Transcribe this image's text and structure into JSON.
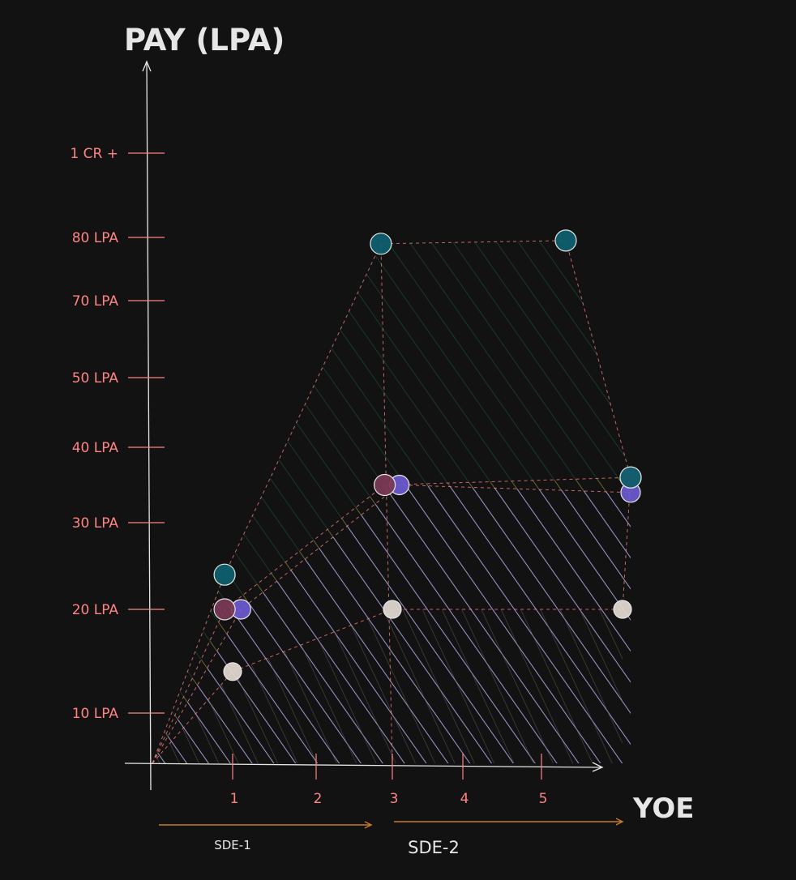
{
  "chart_data": {
    "type": "area",
    "title": "",
    "ylabel": "PAY (LPA)",
    "xlabel": "YOE",
    "y_ticks": [
      {
        "value": 10,
        "label": "10 LPA"
      },
      {
        "value": 20,
        "label": "20 LPA"
      },
      {
        "value": 30,
        "label": "30 LPA"
      },
      {
        "value": 40,
        "label": "40 LPA"
      },
      {
        "value": 50,
        "label": "50 LPA"
      },
      {
        "value": 70,
        "label": "70 LPA"
      },
      {
        "value": 80,
        "label": "80 LPA"
      },
      {
        "value": 100,
        "label": "1 CR +"
      }
    ],
    "x_ticks": [
      {
        "value": 1,
        "label": "1"
      },
      {
        "value": 2,
        "label": "2"
      },
      {
        "value": 3,
        "label": "3"
      },
      {
        "value": 4,
        "label": "4"
      },
      {
        "value": 5,
        "label": "5"
      }
    ],
    "bands": [
      {
        "label": "SDE-1",
        "from": 0,
        "to": 3
      },
      {
        "label": "SDE-2",
        "from": 3,
        "to": 6
      }
    ],
    "series": [
      {
        "color": "#e0d6d0",
        "hatch": "#6a625c",
        "values": [
          {
            "x": 0,
            "y": 0
          },
          {
            "x": 1,
            "y": 14
          },
          {
            "x": 3,
            "y": 20
          },
          {
            "x": 6,
            "y": 20
          }
        ]
      },
      {
        "color": "#6a5acd",
        "hatch": "#a89cff",
        "values": [
          {
            "x": 0,
            "y": 0
          },
          {
            "x": 1.1,
            "y": 20
          },
          {
            "x": 3.1,
            "y": 35
          },
          {
            "x": 6.1,
            "y": 34
          }
        ]
      },
      {
        "color": "#7a3a55",
        "hatch": "#c79a1e",
        "values": [
          {
            "x": 0,
            "y": 0
          },
          {
            "x": 0.9,
            "y": 20
          },
          {
            "x": 2.9,
            "y": 35
          },
          {
            "x": 6.1,
            "y": 36
          }
        ]
      },
      {
        "color": "#0f5f6e",
        "hatch": "#1a6b4a",
        "values": [
          {
            "x": 0,
            "y": 0
          },
          {
            "x": 0.9,
            "y": 24
          },
          {
            "x": 2.85,
            "y": 79
          },
          {
            "x": 5.3,
            "y": 79.5
          },
          {
            "x": 6.1,
            "y": 36
          }
        ]
      }
    ],
    "colors": {
      "background": "#121212",
      "axis": "#e6e6e6",
      "tick": "#ff8383",
      "outline": "#ff8383",
      "band_arrow": "#c97a26"
    },
    "grid": false,
    "legend": "none"
  }
}
